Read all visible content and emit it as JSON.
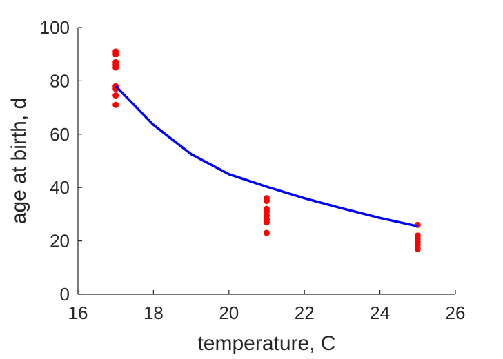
{
  "chart_data": {
    "type": "scatter",
    "xlabel": "temperature, C",
    "ylabel": "age at birth, d",
    "xlim": [
      16,
      26
    ],
    "ylim": [
      0,
      100
    ],
    "xticks": [
      "16",
      "18",
      "20",
      "22",
      "24",
      "26"
    ],
    "yticks": [
      "0",
      "20",
      "40",
      "60",
      "80",
      "100"
    ],
    "grid": false,
    "series": [
      {
        "kind": "scatter",
        "color": "#ff0000",
        "points": [
          [
            17,
            91
          ],
          [
            17,
            90
          ],
          [
            17,
            87
          ],
          [
            17,
            86
          ],
          [
            17,
            85
          ],
          [
            17,
            78
          ],
          [
            17,
            77
          ],
          [
            17,
            74.5
          ],
          [
            17,
            71
          ],
          [
            21,
            36
          ],
          [
            21,
            35
          ],
          [
            21,
            32
          ],
          [
            21,
            31
          ],
          [
            21,
            29.5
          ],
          [
            21,
            28
          ],
          [
            21,
            27
          ],
          [
            21,
            23
          ],
          [
            25,
            26
          ],
          [
            25,
            22
          ],
          [
            25,
            21
          ],
          [
            25,
            19.5
          ],
          [
            25,
            18.5
          ],
          [
            25,
            17
          ]
        ]
      },
      {
        "kind": "line",
        "color": "#0000ff",
        "points": [
          [
            17,
            78
          ],
          [
            18,
            63.5
          ],
          [
            19,
            52.5
          ],
          [
            20,
            45
          ],
          [
            21,
            40.3
          ],
          [
            22,
            36
          ],
          [
            23,
            32.2
          ],
          [
            24,
            28.6
          ],
          [
            25,
            25.5
          ]
        ]
      }
    ]
  }
}
